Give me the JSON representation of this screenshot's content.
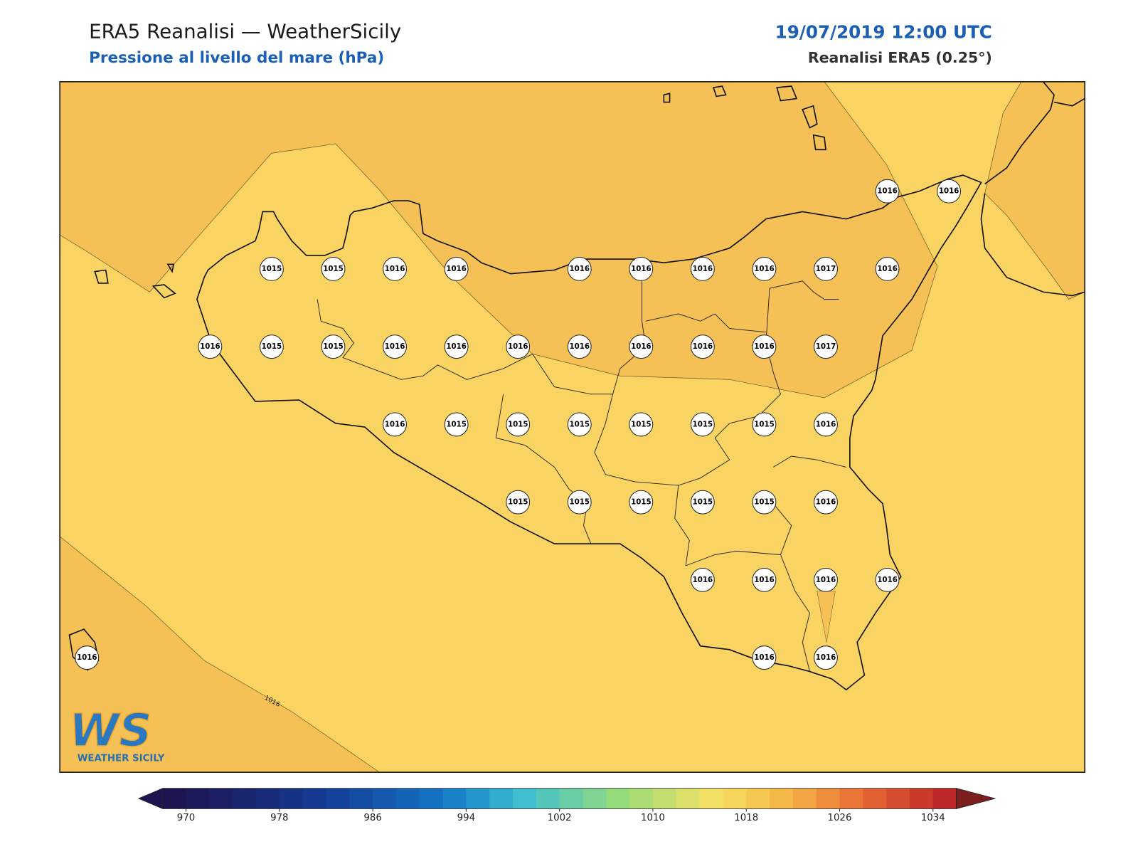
{
  "header": {
    "title": "ERA5 Reanalisi — WeatherSicily",
    "subtitle": "Pressione al livello del mare (hPa)",
    "datetime": "19/07/2019 12:00 UTC",
    "source": "Reanalisi ERA5 (0.25°)"
  },
  "map": {
    "contour_label": 1016,
    "stations": [
      1016,
      1016,
      1015,
      1015,
      1016,
      1016,
      1016,
      1016,
      1016,
      1016,
      1017,
      1016,
      1016,
      1015,
      1015,
      1016,
      1016,
      1016,
      1016,
      1016,
      1016,
      1016,
      1017,
      1016,
      1015,
      1015,
      1015,
      1015,
      1015,
      1015,
      1016,
      1015,
      1015,
      1015,
      1015,
      1015,
      1016,
      1016,
      1016,
      1016,
      1016,
      1016,
      1016,
      1016
    ]
  },
  "colorbar": {
    "ticks": [
      970,
      978,
      986,
      994,
      1002,
      1010,
      1018,
      1026,
      1034
    ]
  },
  "logo": {
    "mark": "WS",
    "name": "WEATHER SICILY"
  }
}
